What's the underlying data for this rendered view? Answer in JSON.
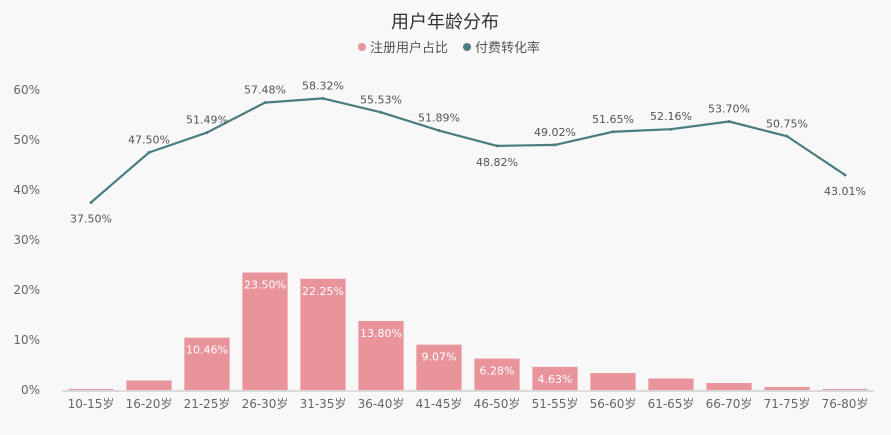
{
  "chart_data": {
    "type": "bar",
    "title": "用户年龄分布",
    "categories": [
      "10-15岁",
      "16-20岁",
      "21-25岁",
      "26-30岁",
      "31-35岁",
      "36-40岁",
      "41-45岁",
      "46-50岁",
      "51-55岁",
      "56-60岁",
      "61-65岁",
      "66-70岁",
      "71-75岁",
      "76-80岁"
    ],
    "series": [
      {
        "name": "注册用户占比",
        "type": "bar",
        "color": "#e8949a",
        "values": [
          0.2,
          1.9,
          10.46,
          23.5,
          22.25,
          13.8,
          9.07,
          6.28,
          4.63,
          3.4,
          2.3,
          1.4,
          0.6,
          0.2
        ],
        "labels": [
          "",
          "",
          "10.46%",
          "23.50%",
          "22.25%",
          "13.80%",
          "9.07%",
          "6.28%",
          "4.63%",
          "",
          "",
          "",
          "",
          ""
        ]
      },
      {
        "name": "付费转化率",
        "type": "line",
        "color": "#4a7d80",
        "values": [
          37.5,
          47.5,
          51.49,
          57.48,
          58.32,
          55.53,
          51.89,
          48.82,
          49.02,
          51.65,
          52.16,
          53.7,
          50.75,
          43.01
        ],
        "labels": [
          "37.50%",
          "47.50%",
          "51.49%",
          "57.48%",
          "58.32%",
          "55.53%",
          "51.89%",
          "48.82%",
          "49.02%",
          "51.65%",
          "52.16%",
          "53.70%",
          "50.75%",
          "43.01%"
        ]
      }
    ],
    "ylim": [
      0,
      60
    ],
    "yticks": [
      "0%",
      "10%",
      "20%",
      "30%",
      "40%",
      "50%",
      "60%"
    ],
    "ytick_values": [
      0,
      10,
      20,
      30,
      40,
      50,
      60
    ],
    "legend_position": "top-center",
    "grid": false
  }
}
